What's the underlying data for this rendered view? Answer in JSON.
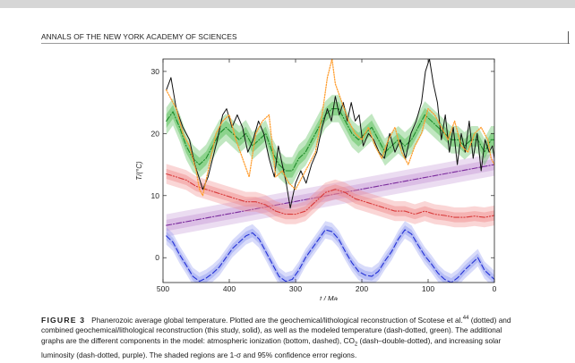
{
  "header": {
    "journal": "ANNALS OF THE NEW YORK ACADEMY OF SCIENCES"
  },
  "chart_data": {
    "type": "line",
    "xlabel": "t / Ma",
    "ylabel": "T/(°C)",
    "xlim": [
      500,
      0
    ],
    "ylim": [
      -4,
      32
    ],
    "x_ticks": [
      500,
      400,
      300,
      200,
      100,
      0
    ],
    "y_ticks": [
      0,
      10,
      20,
      30
    ],
    "grid": false,
    "series": [
      {
        "name": "geochemical/lithological reconstruction (Scotese et al.)",
        "style": "dotted",
        "color": "#ff9d2e",
        "x": [
          495,
          480,
          470,
          460,
          450,
          445,
          440,
          430,
          420,
          410,
          400,
          390,
          380,
          370,
          360,
          350,
          340,
          330,
          320,
          310,
          300,
          290,
          280,
          270,
          260,
          252,
          245,
          240,
          230,
          220,
          210,
          200,
          190,
          180,
          170,
          160,
          150,
          140,
          130,
          120,
          110,
          100,
          90,
          80,
          70,
          60,
          50,
          40,
          30,
          20,
          10,
          5,
          0
        ],
        "values": [
          27,
          24,
          20,
          18,
          14,
          11,
          10,
          15,
          20,
          22,
          23,
          19,
          16,
          13,
          20,
          22,
          23,
          13,
          14,
          12,
          11,
          13,
          15,
          17,
          23,
          29,
          32,
          28,
          25,
          22,
          20,
          19,
          21,
          18,
          16,
          19,
          21,
          17,
          15,
          18,
          20,
          24,
          23,
          21,
          19,
          22,
          18,
          17,
          20,
          21,
          19,
          16,
          15
        ]
      },
      {
        "name": "combined geochemical/lithological reconstruction (this study)",
        "style": "solid",
        "color": "#111111",
        "x": [
          495,
          488,
          480,
          470,
          460,
          452,
          446,
          440,
          432,
          425,
          418,
          410,
          404,
          396,
          388,
          380,
          372,
          364,
          356,
          348,
          340,
          332,
          326,
          320,
          314,
          308,
          300,
          292,
          284,
          276,
          268,
          260,
          252,
          246,
          240,
          234,
          228,
          222,
          216,
          210,
          204,
          198,
          190,
          182,
          174,
          166,
          158,
          150,
          142,
          134,
          126,
          118,
          110,
          104,
          98,
          92,
          86,
          80,
          74,
          68,
          62,
          56,
          50,
          44,
          38,
          32,
          26,
          20,
          14,
          8,
          3,
          0
        ],
        "values": [
          27,
          29,
          24,
          21,
          19,
          15,
          13,
          11,
          13,
          16,
          19,
          23,
          24,
          21,
          23,
          21,
          17,
          19,
          22,
          20,
          16,
          13,
          18,
          15,
          12,
          8,
          12,
          14,
          12,
          15,
          17,
          21,
          24,
          22,
          26,
          23,
          25,
          22,
          25,
          22,
          23,
          18,
          20,
          19,
          17,
          16,
          20,
          17,
          19,
          16,
          20,
          22,
          25,
          30,
          32,
          28,
          25,
          19,
          23,
          17,
          21,
          15,
          20,
          17,
          22,
          16,
          20,
          14,
          19,
          17,
          18,
          16
        ]
      },
      {
        "name": "modeled temperature",
        "style": "dash-dotted",
        "color": "#1f8b2a",
        "band_color": "#4cba4c",
        "x": [
          495,
          485,
          475,
          465,
          455,
          445,
          435,
          425,
          415,
          405,
          395,
          385,
          375,
          365,
          355,
          345,
          335,
          325,
          315,
          305,
          295,
          285,
          275,
          265,
          255,
          245,
          235,
          225,
          215,
          205,
          195,
          185,
          175,
          165,
          155,
          145,
          135,
          125,
          115,
          105,
          95,
          85,
          75,
          65,
          55,
          45,
          35,
          25,
          15,
          5,
          0
        ],
        "values": [
          22,
          23.5,
          21,
          18,
          16,
          15,
          16,
          18,
          20,
          21,
          20,
          19,
          20,
          18,
          19,
          20,
          17,
          15,
          14,
          14,
          16,
          17,
          19,
          21,
          23,
          24,
          24,
          22,
          20,
          19,
          20,
          21,
          19,
          17,
          18,
          19,
          18,
          19,
          21,
          23,
          22,
          21,
          20,
          19,
          19,
          18,
          19,
          19,
          17,
          19,
          19
        ]
      },
      {
        "name": "CO2",
        "style": "dash-double-dotted",
        "color": "#d83a3a",
        "band_color": "#f08a8a",
        "x": [
          495,
          480,
          465,
          450,
          435,
          420,
          405,
          390,
          375,
          360,
          345,
          330,
          315,
          300,
          285,
          270,
          255,
          240,
          225,
          210,
          195,
          180,
          165,
          150,
          135,
          120,
          105,
          90,
          75,
          60,
          45,
          30,
          15,
          0
        ],
        "values": [
          13.5,
          13,
          12.5,
          11.5,
          11,
          10.5,
          10,
          9.5,
          9,
          9,
          8.5,
          7.5,
          7,
          7,
          7.5,
          9,
          10.5,
          11,
          10.5,
          9.5,
          9,
          8.5,
          8,
          7.5,
          7.5,
          7,
          7.5,
          7,
          6.8,
          6.5,
          6.5,
          6.7,
          6.5,
          6.8
        ]
      },
      {
        "name": "increasing solar luminosity",
        "style": "dash-dotted",
        "color": "#7a2a9c",
        "band_color": "#c79ad6",
        "x": [
          495,
          0
        ],
        "values": [
          5.2,
          15
        ]
      },
      {
        "name": "atmospheric ionization",
        "style": "dashed",
        "color": "#2431d6",
        "band_color": "#8f98f0",
        "x": [
          495,
          485,
          475,
          465,
          455,
          445,
          435,
          425,
          415,
          405,
          395,
          385,
          375,
          365,
          355,
          345,
          335,
          325,
          315,
          305,
          295,
          285,
          275,
          265,
          255,
          245,
          235,
          225,
          215,
          205,
          195,
          185,
          175,
          165,
          155,
          145,
          135,
          125,
          115,
          105,
          95,
          85,
          75,
          65,
          55,
          45,
          35,
          25,
          15,
          5,
          0
        ],
        "values": [
          3.5,
          2.5,
          0.5,
          -1.2,
          -3,
          -3.8,
          -3.3,
          -2.5,
          -1.5,
          0,
          1.5,
          2.5,
          3.5,
          4,
          3,
          1,
          -1,
          -3,
          -3.8,
          -3.5,
          -2,
          0,
          1.5,
          3,
          4.5,
          4.2,
          3,
          1,
          -0.8,
          -2.2,
          -2.8,
          -3,
          -2.2,
          -0.5,
          1,
          3,
          4.5,
          3.8,
          2,
          0.3,
          -1,
          -2.5,
          -3.5,
          -4,
          -3.2,
          -2,
          -1,
          0,
          -2,
          -3,
          -3.5
        ]
      }
    ]
  },
  "caption": {
    "label": "FIGURE 3",
    "line1_a": "Phanerozoic average global temperature. Plotted are the geochemical/lithological reconstruction of Scotese et al.",
    "line1_sup": "44",
    "line1_b": " (dotted) and",
    "line2": "combined geochemical/lithological reconstruction (this study, solid), as well as the modeled temperature (dash-dotted, green). The additional",
    "line3_a": "graphs are the different components in the model: atmospheric ionization (bottom, dashed), CO",
    "line3_sub": "2",
    "line3_b": " (dash–double-dotted), and increasing solar",
    "line4": "luminosity (dash-dotted, purple). The shaded regions are 1-σ and 95% confidence error regions."
  }
}
